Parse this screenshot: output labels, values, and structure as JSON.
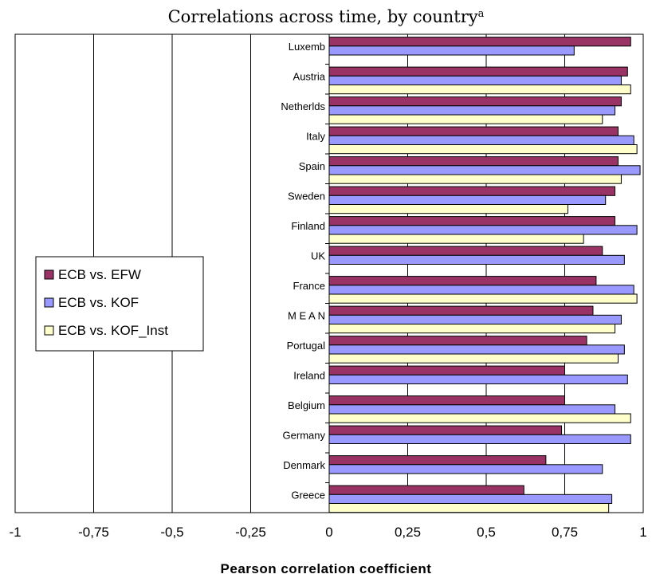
{
  "chart_data": {
    "type": "bar",
    "orientation": "horizontal",
    "title": "Correlations across time, by country",
    "title_superscript": "a",
    "xlabel": "Pearson correlation coefficient",
    "ylabel": "",
    "xlim": [
      -1,
      1
    ],
    "x_ticks": [
      -1,
      -0.75,
      -0.5,
      -0.25,
      0,
      0.25,
      0.5,
      0.75,
      1
    ],
    "x_tick_labels": [
      "-1",
      "-0,75",
      "-0,5",
      "-0,25",
      "0",
      "0,25",
      "0,5",
      "0,75",
      "1"
    ],
    "grid": "vertical",
    "legend_position": "left",
    "categories": [
      "Luxemb",
      "Austria",
      "Netherlds",
      "Italy",
      "Spain",
      "Sweden",
      "Finland",
      "UK",
      "France",
      "M E A N",
      "Portugal",
      "Ireland",
      "Belgium",
      "Germany",
      "Denmark",
      "Greece"
    ],
    "series": [
      {
        "name": "ECB vs. EFW",
        "color": "#993366",
        "values": [
          0.96,
          0.95,
          0.93,
          0.92,
          0.92,
          0.91,
          0.91,
          0.87,
          0.85,
          0.84,
          0.82,
          0.75,
          0.75,
          0.74,
          0.69,
          0.62
        ]
      },
      {
        "name": "ECB vs. KOF",
        "color": "#9999ff",
        "values": [
          0.78,
          0.93,
          0.91,
          0.97,
          0.99,
          0.88,
          0.98,
          0.94,
          0.97,
          0.93,
          0.94,
          0.95,
          0.91,
          0.96,
          0.87,
          0.9
        ]
      },
      {
        "name": "ECB vs. KOF_Inst",
        "color": "#ffffcc",
        "values": [
          null,
          0.96,
          0.87,
          0.98,
          0.93,
          0.76,
          0.81,
          null,
          0.98,
          0.91,
          0.92,
          null,
          0.96,
          null,
          null,
          0.89
        ]
      }
    ]
  }
}
